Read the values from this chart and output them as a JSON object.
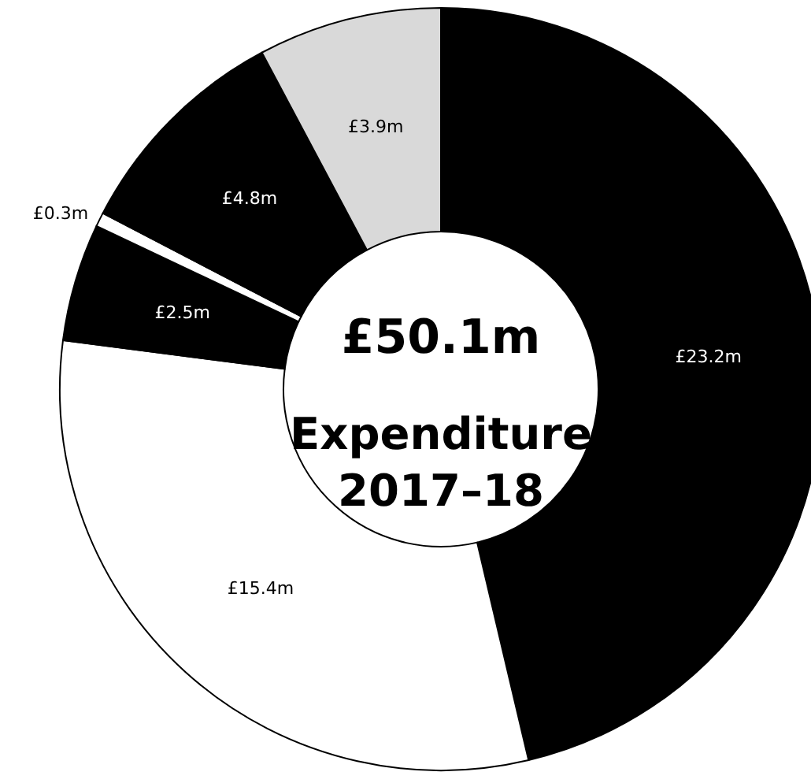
{
  "chart_data": {
    "type": "donut",
    "categories": [
      null,
      null,
      null,
      null,
      null,
      null
    ],
    "values": [
      23.2,
      15.4,
      2.5,
      0.3,
      4.8,
      3.9
    ],
    "colors": [
      "#000000",
      "#ffffff",
      "#000000",
      "#ffffff",
      "#000000",
      "#d9d9d9"
    ],
    "value_labels": [
      "£23.2m",
      "£15.4m",
      "£2.5m",
      "£0.3m",
      "£4.8m",
      "£3.9m"
    ],
    "annotations": [
      "£50.1m",
      "Expenditure 2017–18"
    ]
  }
}
